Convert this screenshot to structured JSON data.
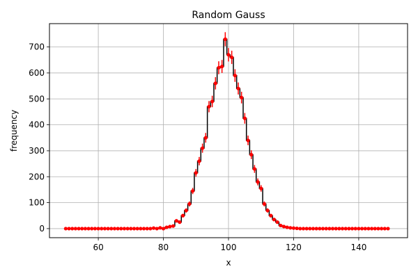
{
  "chart_data": {
    "type": "histogram",
    "title": "Random Gauss",
    "xlabel": "x",
    "ylabel": "frequency",
    "xlim": [
      45,
      155
    ],
    "ylim": [
      -35,
      790
    ],
    "x_ticks": [
      60,
      80,
      100,
      120,
      140
    ],
    "y_ticks": [
      0,
      100,
      200,
      300,
      400,
      500,
      600,
      700
    ],
    "grid": true,
    "step_color": "#000000",
    "errorbar_color": "#ff0000",
    "x": [
      50,
      51,
      52,
      53,
      54,
      55,
      56,
      57,
      58,
      59,
      60,
      61,
      62,
      63,
      64,
      65,
      66,
      67,
      68,
      69,
      70,
      71,
      72,
      73,
      74,
      75,
      76,
      77,
      78,
      79,
      80,
      81,
      82,
      83,
      84,
      85,
      86,
      87,
      88,
      89,
      90,
      91,
      92,
      93,
      94,
      95,
      96,
      97,
      98,
      99,
      100,
      101,
      102,
      103,
      104,
      105,
      106,
      107,
      108,
      109,
      110,
      111,
      112,
      113,
      114,
      115,
      116,
      117,
      118,
      119,
      120,
      121,
      122,
      123,
      124,
      125,
      126,
      127,
      128,
      129,
      130,
      131,
      132,
      133,
      134,
      135,
      136,
      137,
      138,
      139,
      140,
      141,
      142,
      143,
      144,
      145,
      146,
      147,
      148,
      149
    ],
    "y": [
      0,
      0,
      0,
      0,
      0,
      0,
      0,
      0,
      0,
      0,
      0,
      0,
      0,
      0,
      0,
      0,
      0,
      0,
      0,
      0,
      0,
      0,
      0,
      0,
      0,
      0,
      0,
      2,
      0,
      3,
      0,
      5,
      8,
      10,
      30,
      25,
      50,
      70,
      95,
      145,
      215,
      260,
      310,
      350,
      470,
      490,
      560,
      620,
      625,
      730,
      670,
      660,
      590,
      540,
      505,
      425,
      340,
      285,
      230,
      180,
      155,
      95,
      70,
      50,
      35,
      25,
      12,
      8,
      5,
      3,
      2,
      1,
      0,
      0,
      0,
      0,
      0,
      0,
      0,
      0,
      0,
      0,
      0,
      0,
      0,
      0,
      0,
      0,
      0,
      0,
      0,
      0,
      0,
      0,
      0,
      0,
      0,
      0,
      0,
      0
    ]
  }
}
